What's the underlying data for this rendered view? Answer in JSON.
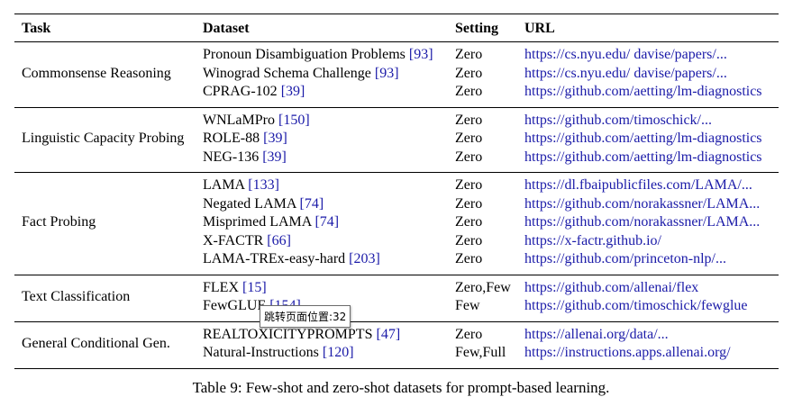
{
  "header": {
    "task": "Task",
    "dataset": "Dataset",
    "setting": "Setting",
    "url": "URL"
  },
  "groups": [
    {
      "task": "Commonsense Reasoning",
      "rows": [
        {
          "dataset": "Pronoun Disambiguation Problems",
          "cite": "[93]",
          "setting": "Zero",
          "url": "https://cs.nyu.edu/ davise/papers/..."
        },
        {
          "dataset": "Winograd Schema Challenge",
          "cite": "[93]",
          "setting": "Zero",
          "url": "https://cs.nyu.edu/ davise/papers/..."
        },
        {
          "dataset": "CPRAG-102",
          "cite": "[39]",
          "setting": "Zero",
          "url": "https://github.com/aetting/lm-diagnostics"
        }
      ]
    },
    {
      "task": "Linguistic Capacity Probing",
      "rows": [
        {
          "dataset": "WNLaMPro",
          "cite": "[150]",
          "setting": "Zero",
          "url": "https://github.com/timoschick/..."
        },
        {
          "dataset": "ROLE-88",
          "cite": "[39]",
          "setting": "Zero",
          "url": "https://github.com/aetting/lm-diagnostics"
        },
        {
          "dataset": "NEG-136",
          "cite": "[39]",
          "setting": "Zero",
          "url": "https://github.com/aetting/lm-diagnostics"
        }
      ]
    },
    {
      "task": "Fact Probing",
      "rows": [
        {
          "dataset": "LAMA",
          "cite": "[133]",
          "setting": "Zero",
          "url": "https://dl.fbaipublicfiles.com/LAMA/..."
        },
        {
          "dataset": "Negated LAMA",
          "cite": "[74]",
          "setting": "Zero",
          "url": "https://github.com/norakassner/LAMA..."
        },
        {
          "dataset": "Misprimed LAMA",
          "cite": "[74]",
          "setting": "Zero",
          "url": "https://github.com/norakassner/LAMA..."
        },
        {
          "dataset": "X-FACTR",
          "cite": "[66]",
          "setting": "Zero",
          "url": "https://x-factr.github.io/"
        },
        {
          "dataset": "LAMA-TREx-easy-hard",
          "cite": "[203]",
          "setting": "Zero",
          "url": "https://github.com/princeton-nlp/..."
        }
      ]
    },
    {
      "task": "Text Classification",
      "rows": [
        {
          "dataset": "FLEX",
          "cite": "[15]",
          "setting": "Zero,Few",
          "url": "https://github.com/allenai/flex"
        },
        {
          "dataset": "FewGLUE",
          "cite": "[154]",
          "setting": "Few",
          "url": "https://github.com/timoschick/fewglue"
        }
      ]
    },
    {
      "task": "General Conditional Gen.",
      "rows": [
        {
          "dataset": "REALTOXICITYPROMPTS",
          "cite": "[47]",
          "setting": "Zero",
          "url": "https://allenai.org/data/..."
        },
        {
          "dataset": "Natural-Instructions",
          "cite": "[120]",
          "setting": "Few,Full",
          "url": "https://instructions.apps.allenai.org/"
        }
      ]
    }
  ],
  "caption": "Table 9: Few-shot and zero-shot datasets for prompt-based learning.",
  "tooltip": "跳转页面位置:32"
}
